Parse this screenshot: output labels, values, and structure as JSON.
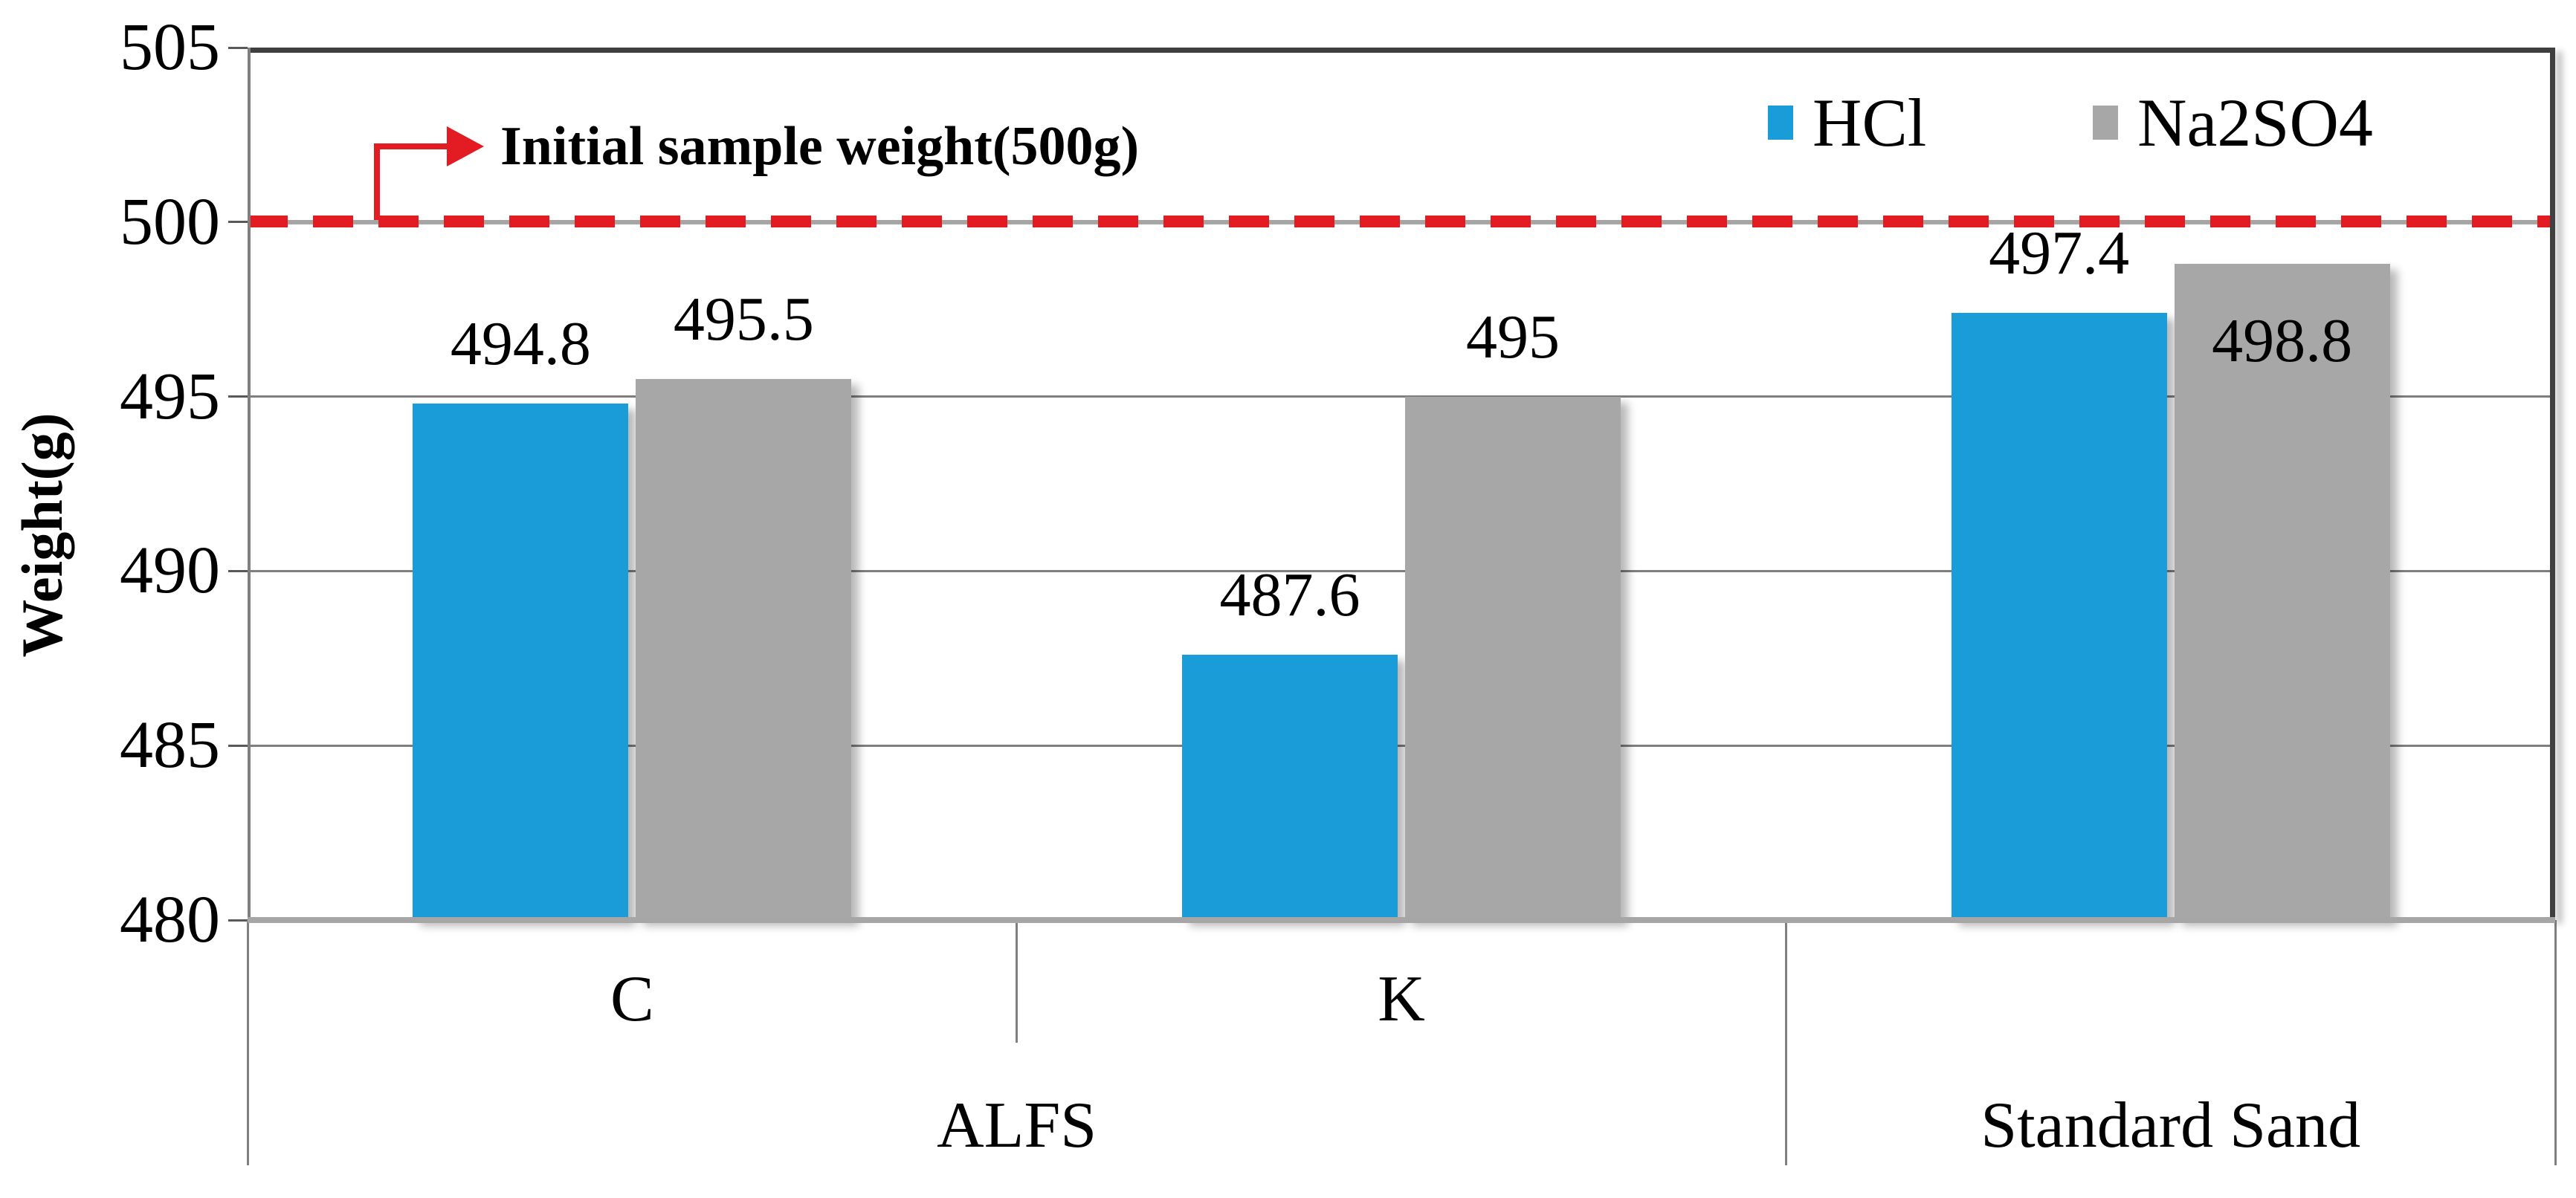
{
  "chart_data": {
    "type": "bar",
    "ylabel": "Weight(g)",
    "ylim": [
      480,
      505
    ],
    "yticks": [
      480,
      485,
      490,
      495,
      500,
      505
    ],
    "grid": true,
    "legend_position": "top-right-inside",
    "categories": [
      "C",
      "K",
      ""
    ],
    "super_categories": [
      {
        "label": "ALFS",
        "span": [
          0,
          2
        ]
      },
      {
        "label": "Standard Sand",
        "span": [
          2,
          3
        ]
      }
    ],
    "series": [
      {
        "name": "HCl",
        "color": "#1a9cd8",
        "values": [
          494.8,
          487.6,
          497.4
        ],
        "labels": [
          "494.8",
          "487.6",
          "497.4"
        ],
        "label_placement": [
          "outside",
          "outside",
          "outside"
        ]
      },
      {
        "name": "Na2SO4",
        "color": "#a7a7a7",
        "values": [
          495.5,
          495,
          498.8
        ],
        "labels": [
          "495.5",
          "495",
          "498.8"
        ],
        "label_placement": [
          "outside",
          "outside",
          "inside"
        ]
      }
    ],
    "reference_line": {
      "value": 500,
      "color": "#e31b23",
      "style": "dashed",
      "annotation": "Initial sample weight(500g)"
    }
  }
}
